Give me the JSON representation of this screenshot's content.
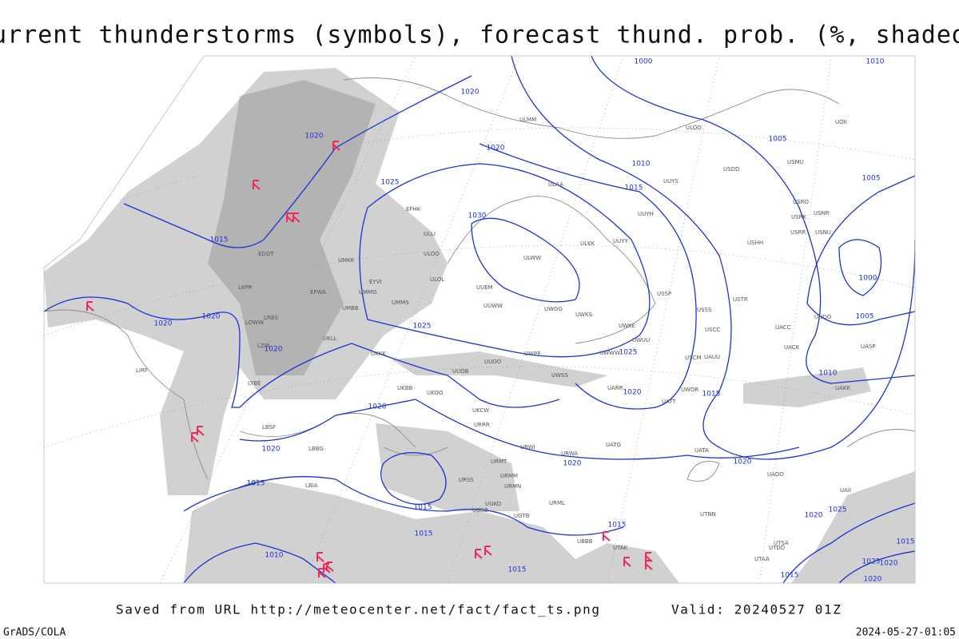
{
  "header": {
    "title": "Current thunderstorms (symbols), forecast thund. prob. (%, shaded)"
  },
  "map": {
    "isobar_labels": [
      "1000",
      "1010",
      "1020",
      "1020",
      "1020",
      "1005",
      "1010",
      "1005",
      "1025",
      "1015",
      "1030",
      "1015",
      "1000",
      "1005",
      "1020",
      "1020",
      "1025",
      "1025",
      "1020",
      "1010",
      "1020",
      "1015",
      "1020",
      "1020",
      "1020",
      "1020",
      "1015",
      "1015",
      "1015",
      "1015",
      "1025",
      "1020",
      "1010",
      "1015",
      "1015",
      "1025",
      "1020",
      "1020",
      "1015"
    ],
    "stations": [
      "ULMM",
      "ULOO",
      "UOII",
      "USDD",
      "USMU",
      "UUYS",
      "ULAA",
      "UUYH",
      "USRO",
      "USNR",
      "USRK",
      "USRR",
      "USNU",
      "USHH",
      "ULKK",
      "UUYY",
      "ULWW",
      "ULLI",
      "EFHK",
      "ULOO",
      "UMKK",
      "ULOL",
      "EYVI",
      "UMMG",
      "UMMS",
      "UUEM",
      "UUWW",
      "UWGG",
      "UWKS",
      "USSP",
      "USSS",
      "USTR",
      "USCC",
      "UWKE",
      "UWUU",
      "UNOO",
      "UACC",
      "UASP",
      "UACK",
      "UWWW",
      "UWPP",
      "USCM",
      "UAUU",
      "UUOB",
      "UUOO",
      "UWSS",
      "UARR",
      "UATT",
      "UWOR",
      "UAKK",
      "UKBB",
      "UKOO",
      "UKCW",
      "URRR",
      "URWI",
      "URWA",
      "UATG",
      "UATA",
      "UAOO",
      "UAII",
      "URMT",
      "URMM",
      "URSS",
      "URMN",
      "UGKO",
      "UGSB",
      "UGTB",
      "URML",
      "UBBB",
      "UTAK",
      "UTNN",
      "UTSA",
      "UTDD",
      "UTAA",
      "LBSF",
      "LBBG",
      "LBIA",
      "LIRF",
      "LYBE",
      "LRBS",
      "EPWA",
      "LKPR",
      "LOWW",
      "LZIB",
      "UKKK",
      "UKLL",
      "EDDT",
      "UMBB"
    ]
  },
  "footer": {
    "source": "Saved from URL http://meteocenter.net/fact/fact_ts.png",
    "valid": "Valid: 20240527 01Z",
    "credit": "GrADS/COLA",
    "timestamp": "2024-05-27-01:05"
  }
}
